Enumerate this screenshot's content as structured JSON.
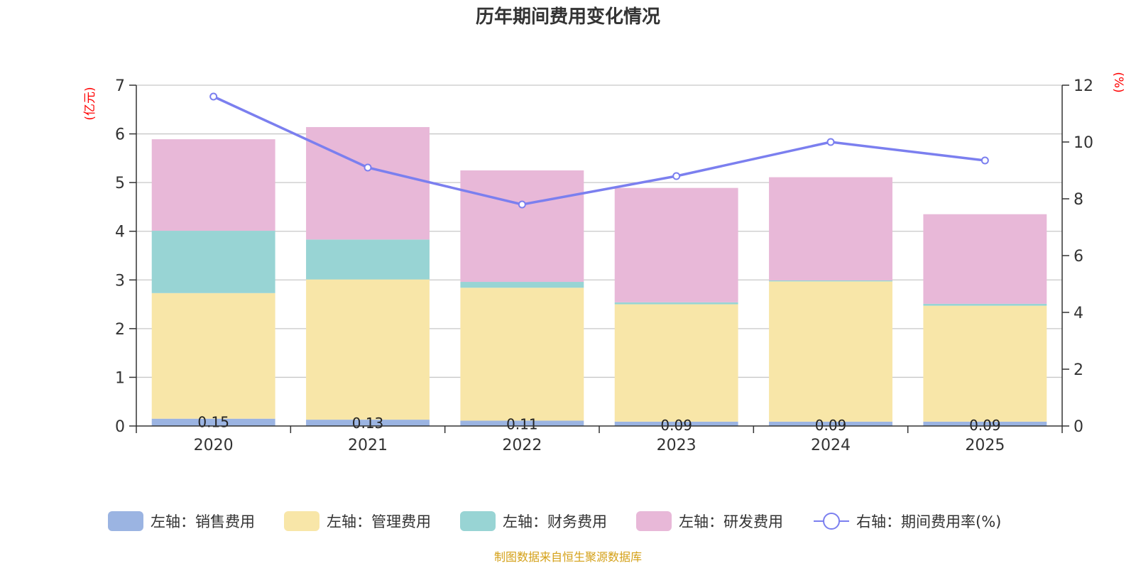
{
  "chart_data": {
    "type": "bar",
    "title": "历年期间费用变化情况",
    "categories": [
      "2020",
      "2021",
      "2022",
      "2023",
      "2024",
      "2025"
    ],
    "left_axis": {
      "unit": "(亿元)",
      "ylim": [
        0,
        7
      ],
      "ticks": [
        "0",
        "1",
        "2",
        "3",
        "4",
        "5",
        "6",
        "7"
      ]
    },
    "right_axis": {
      "unit": "(%)",
      "ylim": [
        0,
        12
      ],
      "ticks": [
        "0",
        "2",
        "4",
        "6",
        "8",
        "10",
        "12"
      ]
    },
    "series": [
      {
        "name": "左轴：销售费用",
        "axis": "left",
        "type": "bar",
        "color": "#9bb4e2",
        "values": [
          0.15,
          0.13,
          0.11,
          0.09,
          0.09,
          0.09
        ],
        "labels": [
          "0.15",
          "0.13",
          "0.11",
          "0.09",
          "0.09",
          "0.09"
        ]
      },
      {
        "name": "左轴：管理费用",
        "axis": "left",
        "type": "bar",
        "color": "#f8e6a8",
        "values": [
          2.58,
          2.88,
          2.73,
          2.41,
          2.88,
          2.38
        ]
      },
      {
        "name": "左轴：财务费用",
        "axis": "left",
        "type": "bar",
        "color": "#98d4d4",
        "values": [
          1.28,
          0.82,
          0.12,
          0.04,
          0.02,
          0.04
        ]
      },
      {
        "name": "左轴：研发费用",
        "axis": "left",
        "type": "bar",
        "color": "#e8b8d8",
        "values": [
          1.88,
          2.31,
          2.29,
          2.35,
          2.12,
          1.84
        ]
      },
      {
        "name": "右轴：期间费用率(%)",
        "axis": "right",
        "type": "line",
        "color": "#7b7fef",
        "values": [
          11.6,
          9.1,
          7.8,
          8.8,
          10.0,
          9.35
        ]
      }
    ],
    "grid": true,
    "legend": "bottom"
  },
  "source_text": "制图数据来自恒生聚源数据库",
  "source_color": "#d4a017"
}
